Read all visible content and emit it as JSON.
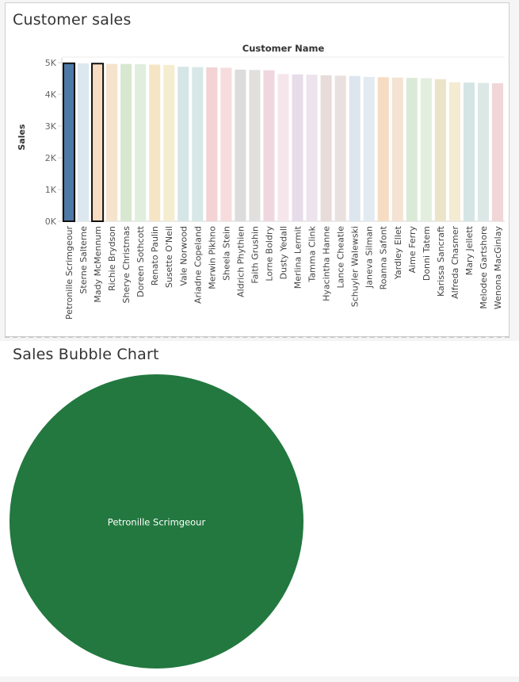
{
  "chart_data": [
    {
      "type": "bar",
      "title": "Customer sales",
      "column_header": "Customer Name",
      "ylabel": "Sales",
      "ylim": [
        0,
        5000
      ],
      "yticks": [
        0,
        1000,
        2000,
        3000,
        4000,
        5000
      ],
      "ytick_labels": [
        "0K",
        "1K",
        "2K",
        "3K",
        "4K",
        "5K"
      ],
      "grid": false,
      "categories": [
        "Petronille Scrimgeour",
        "Sterne Salterne",
        "Mady McMennum",
        "Richie Brydson",
        "Sherye Christmas",
        "Doreen Sothcott",
        "Renato Paulin",
        "Susette O'Neil",
        "Vale Norwood",
        "Ariadne Copeland",
        "Merwin Pikhno",
        "Sheela Stein",
        "Aldrich Phythien",
        "Faith Grushin",
        "Lorne Boldry",
        "Dusty Yedall",
        "Merlina Lermit",
        "Tamma Clink",
        "Hyacintha Hanne",
        "Lance Cheatle",
        "Schuyler Walewski",
        "Janeva Silman",
        "Roanna Safont",
        "Yardley Ellet",
        "Aime Ferry",
        "Donni Tatem",
        "Karissa Sancraft",
        "Alfreda Chasmer",
        "Mary Jellett",
        "Melodee Gartshore",
        "Wenona MacGinlay"
      ],
      "values": [
        4980,
        4980,
        4970,
        4960,
        4960,
        4950,
        4940,
        4930,
        4870,
        4860,
        4850,
        4840,
        4780,
        4770,
        4760,
        4640,
        4630,
        4620,
        4600,
        4590,
        4580,
        4550,
        4540,
        4530,
        4520,
        4510,
        4480,
        4380,
        4370,
        4360,
        4350
      ],
      "colors": [
        "#4e79a7",
        "#dde7f0",
        "#f7dcc1",
        "#f6e3cd",
        "#d8e8d0",
        "#dfeedd",
        "#f6e5c4",
        "#f5edcf",
        "#d6e5e5",
        "#d7e8e6",
        "#f3d3d4",
        "#f6dcdc",
        "#dcdcdc",
        "#e2e0de",
        "#f0d7df",
        "#f5e6ec",
        "#e6dde8",
        "#ece3ec",
        "#e7dcd9",
        "#e9e1df",
        "#dde6ee",
        "#e3ebf2",
        "#f6dcc2",
        "#f4e3d2",
        "#dbe9d7",
        "#e3eedf",
        "#ece4c9",
        "#f4ebd3",
        "#d5e4e4",
        "#dce8e6",
        "#f0d6d6"
      ],
      "selected": [
        "Petronille Scrimgeour",
        "Mady McMennum"
      ]
    },
    {
      "type": "bubble",
      "title": "Sales Bubble Chart",
      "bubbles": [
        {
          "label": "Petronille Scrimgeour",
          "value": 4980,
          "color": "#22783f"
        }
      ]
    }
  ]
}
